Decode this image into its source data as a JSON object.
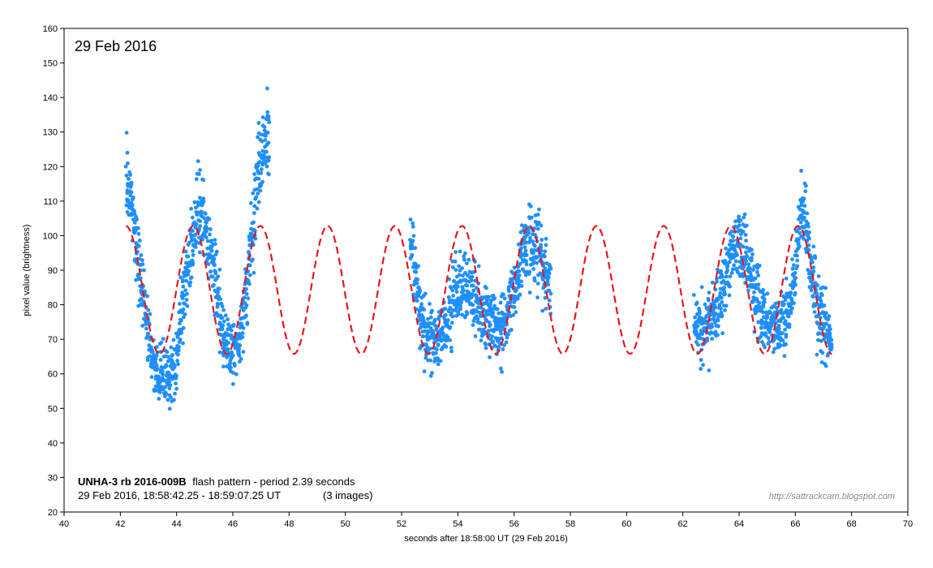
{
  "chart_data": {
    "type": "scatter",
    "date_label": "29 Feb 2016",
    "xlabel": "seconds after 18:58:00 UT (29 Feb 2016)",
    "ylabel": "pixel value (brightness)",
    "xlim": [
      40,
      70
    ],
    "ylim": [
      20,
      160
    ],
    "x_ticks": [
      "40",
      "42",
      "44",
      "46",
      "48",
      "50",
      "52",
      "54",
      "56",
      "58",
      "60",
      "62",
      "64",
      "66",
      "68",
      "70"
    ],
    "y_ticks": [
      "20",
      "30",
      "40",
      "50",
      "60",
      "70",
      "80",
      "90",
      "100",
      "110",
      "120",
      "130",
      "140",
      "150",
      "160"
    ],
    "info": {
      "object": "UNHA-3 rb 2016-009B",
      "pattern_text": "flash pattern  -  period 2.39 seconds",
      "time_range": "29 Feb 2016,  18:58:42.25 - 18:59:07.25 UT",
      "images": "(3 images)"
    },
    "credit": "http://sattrackcam.blogspot.com",
    "colors": {
      "points": "#1f8fff",
      "fit": "#e8161c",
      "axis": "#000000"
    },
    "fit_curve": {
      "name": "sinusoidal fit",
      "style": "dashed",
      "period_s": 2.39,
      "mean": 84.3,
      "amplitude": 18.5,
      "peak_time_s": 42.2,
      "x_range": [
        42.2,
        67.3
      ]
    },
    "series": [
      {
        "name": "observed pixel value",
        "segments": [
          {
            "x_range": [
              42.2,
              47.3
            ],
            "anchors": [
              [
                42.2,
                118
              ],
              [
                42.4,
                108
              ],
              [
                42.6,
                96
              ],
              [
                42.8,
                86
              ],
              [
                43.0,
                72
              ],
              [
                43.2,
                62
              ],
              [
                43.5,
                59
              ],
              [
                43.8,
                60
              ],
              [
                44.0,
                65
              ],
              [
                44.2,
                80
              ],
              [
                44.5,
                98
              ],
              [
                44.8,
                107
              ],
              [
                45.0,
                103
              ],
              [
                45.3,
                92
              ],
              [
                45.6,
                74
              ],
              [
                45.9,
                67
              ],
              [
                46.2,
                69
              ],
              [
                46.5,
                84
              ],
              [
                46.7,
                100
              ],
              [
                46.9,
                120
              ],
              [
                47.2,
                127
              ]
            ]
          },
          {
            "x_range": [
              52.3,
              57.3
            ],
            "anchors": [
              [
                52.3,
                100
              ],
              [
                52.5,
                88
              ],
              [
                52.8,
                74
              ],
              [
                53.0,
                70
              ],
              [
                53.3,
                70
              ],
              [
                53.6,
                75
              ],
              [
                53.9,
                83
              ],
              [
                54.2,
                85
              ],
              [
                54.5,
                83
              ],
              [
                54.8,
                79
              ],
              [
                55.1,
                75
              ],
              [
                55.4,
                73
              ],
              [
                55.7,
                75
              ],
              [
                55.9,
                82
              ],
              [
                56.2,
                90
              ],
              [
                56.5,
                98
              ],
              [
                56.8,
                97
              ],
              [
                57.1,
                90
              ],
              [
                57.3,
                85
              ]
            ]
          },
          {
            "x_range": [
              62.4,
              67.3
            ],
            "anchors": [
              [
                62.4,
                75
              ],
              [
                62.7,
                72
              ],
              [
                63.0,
                75
              ],
              [
                63.3,
                81
              ],
              [
                63.6,
                90
              ],
              [
                63.9,
                98
              ],
              [
                64.2,
                94
              ],
              [
                64.5,
                86
              ],
              [
                64.8,
                77
              ],
              [
                65.1,
                74
              ],
              [
                65.4,
                74
              ],
              [
                65.7,
                76
              ],
              [
                66.0,
                90
              ],
              [
                66.2,
                106
              ],
              [
                66.4,
                102
              ],
              [
                66.6,
                90
              ],
              [
                66.8,
                79
              ],
              [
                67.0,
                74
              ],
              [
                67.3,
                68
              ]
            ]
          }
        ]
      }
    ]
  }
}
